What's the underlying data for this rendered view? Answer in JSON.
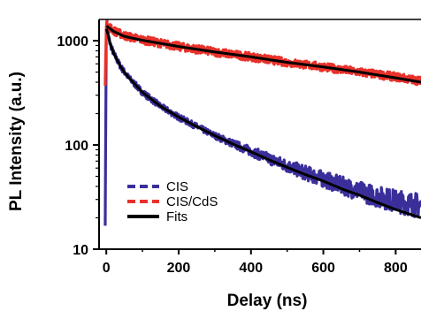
{
  "chart_data": {
    "type": "line",
    "title": "",
    "xlabel": "Delay (ns)",
    "ylabel": "PL Intensity (a.u.)",
    "xlim": [
      -20,
      870
    ],
    "ylim": [
      10,
      1600
    ],
    "y_scale": "log",
    "x_ticks": [
      0,
      200,
      400,
      600,
      800
    ],
    "y_ticks": [
      10,
      100,
      1000
    ],
    "x_tick_labels": [
      "0",
      "200",
      "400",
      "600",
      "800"
    ],
    "y_tick_labels": [
      "10",
      "100",
      "1000"
    ],
    "grid": false,
    "legend": {
      "position": "bottom-left",
      "entries": [
        {
          "label": "CIS",
          "style": "dashed",
          "color": "#3a2f9a"
        },
        {
          "label": "CIS/CdS",
          "style": "dashed",
          "color": "#e8312a"
        },
        {
          "label": "Fits",
          "style": "solid",
          "color": "#000000"
        }
      ]
    },
    "series": [
      {
        "name": "CIS",
        "color": "#3a2f9a",
        "x": [
          -3,
          0,
          5,
          10,
          20,
          40,
          60,
          100,
          150,
          200,
          250,
          300,
          350,
          400,
          450,
          500,
          550,
          600,
          650,
          700,
          750,
          800,
          870
        ],
        "y": [
          18,
          1350,
          1150,
          950,
          760,
          560,
          450,
          320,
          235,
          185,
          150,
          123,
          103,
          87,
          74,
          63,
          54,
          47,
          41,
          36,
          32,
          29,
          26
        ]
      },
      {
        "name": "CIS/CdS",
        "color": "#e8312a",
        "x": [
          -3,
          0,
          5,
          20,
          50,
          100,
          200,
          300,
          400,
          500,
          600,
          700,
          800,
          870
        ],
        "y": [
          380,
          1450,
          1400,
          1250,
          1120,
          1020,
          880,
          780,
          700,
          620,
          560,
          500,
          450,
          410
        ]
      },
      {
        "name": "Fits",
        "color": "#000000",
        "x": [
          0,
          5,
          10,
          20,
          40,
          60,
          100,
          150,
          200,
          250,
          300,
          350,
          400,
          450,
          500,
          550,
          600,
          650,
          700,
          750,
          800,
          870
        ],
        "y": [
          1300,
          1150,
          950,
          760,
          560,
          450,
          320,
          235,
          185,
          150,
          123,
          102,
          86,
          72,
          61,
          52,
          45,
          38,
          33,
          28,
          24,
          20
        ]
      },
      {
        "name": "Fits",
        "color": "#000000",
        "x": [
          0,
          5,
          20,
          50,
          100,
          200,
          300,
          400,
          500,
          600,
          700,
          800,
          870
        ],
        "y": [
          1380,
          1350,
          1230,
          1100,
          1010,
          880,
          780,
          700,
          620,
          560,
          500,
          440,
          400
        ]
      }
    ]
  }
}
